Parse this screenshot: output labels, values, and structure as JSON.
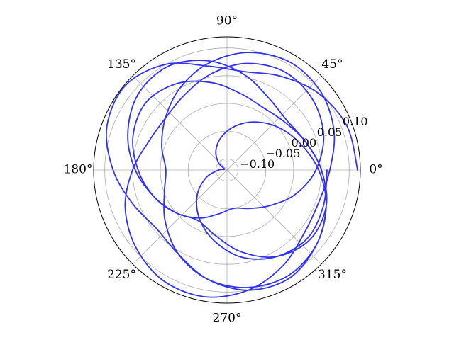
{
  "chart_data": {
    "type": "line",
    "projection": "polar",
    "title": "",
    "grid": true,
    "theta_ticks": [
      {
        "deg": 0,
        "label": "0°"
      },
      {
        "deg": 45,
        "label": "45°"
      },
      {
        "deg": 90,
        "label": "90°"
      },
      {
        "deg": 135,
        "label": "135°"
      },
      {
        "deg": 180,
        "label": "180°"
      },
      {
        "deg": 225,
        "label": "225°"
      },
      {
        "deg": 270,
        "label": "270°"
      },
      {
        "deg": 315,
        "label": "315°"
      }
    ],
    "r_ticks": [
      {
        "value": -0.1,
        "label": "−0.10"
      },
      {
        "value": -0.05,
        "label": "−0.05"
      },
      {
        "value": 0.0,
        "label": "0.00"
      },
      {
        "value": 0.05,
        "label": "0.05"
      },
      {
        "value": 0.1,
        "label": "0.10"
      }
    ],
    "r_label_angle_deg": 22.5,
    "rlim": [
      -0.12,
      0.12
    ],
    "series": [
      {
        "color": "#3333ee",
        "theta_deg": [
          0,
          20,
          40,
          60,
          80,
          100,
          120,
          140,
          160,
          180,
          200,
          220,
          240,
          260,
          280,
          300,
          320,
          340,
          360,
          380,
          400,
          420,
          440,
          460,
          480,
          500,
          520,
          540,
          560,
          580,
          600,
          620,
          640,
          660,
          680,
          700,
          720,
          740,
          760,
          780,
          800,
          820,
          840,
          860,
          880,
          900,
          920,
          940,
          960,
          980,
          1000,
          1020,
          1040,
          1060,
          1080,
          1100,
          1120,
          1140,
          1160,
          1180,
          1200,
          1220,
          1240,
          1260,
          1280,
          1300,
          1320,
          1340,
          1360,
          1380,
          1400,
          1420,
          1440,
          1460,
          1480,
          1500,
          1520,
          1540,
          1560,
          1580,
          1600,
          1620,
          1640,
          1660,
          1680,
          1700,
          1720,
          1740,
          1760,
          1780,
          1800,
          1820,
          1840,
          1860,
          1880,
          1900,
          1920,
          1940,
          1960,
          1980,
          2000,
          2020,
          2040,
          2060,
          2080,
          2100,
          2120,
          2140,
          2160
        ],
        "r": [
          0.115,
          0.11,
          0.095,
          0.075,
          0.06,
          0.07,
          0.1,
          0.118,
          0.11,
          0.085,
          0.06,
          0.045,
          0.055,
          0.08,
          0.1,
          0.105,
          0.09,
          0.07,
          0.05,
          0.03,
          0.02,
          0.03,
          0.055,
          0.08,
          0.095,
          0.09,
          0.07,
          0.045,
          0.02,
          0.0,
          -0.015,
          0.0,
          0.03,
          0.06,
          0.075,
          0.07,
          0.05,
          0.03,
          0.015,
          0.01,
          0.02,
          0.04,
          0.06,
          0.07,
          0.06,
          0.04,
          0.02,
          0.0,
          -0.02,
          -0.04,
          -0.05,
          -0.04,
          -0.02,
          0.01,
          0.04,
          0.065,
          0.08,
          0.085,
          0.075,
          0.055,
          0.035,
          0.025,
          0.03,
          0.05,
          0.075,
          0.095,
          0.11,
          0.112,
          0.1,
          0.08,
          0.06,
          0.055,
          0.065,
          0.085,
          0.1,
          0.105,
          0.095,
          0.075,
          0.05,
          0.025,
          0.005,
          -0.01,
          0.0,
          0.025,
          0.055,
          0.08,
          0.095,
          0.1,
          0.09,
          0.07,
          0.045,
          0.02,
          0.0,
          -0.02,
          -0.04,
          -0.06,
          -0.08,
          -0.1,
          -0.115,
          -0.105,
          -0.08,
          -0.05,
          -0.02,
          0.01,
          0.04,
          0.06,
          0.07,
          0.065,
          0.06
        ]
      }
    ]
  }
}
